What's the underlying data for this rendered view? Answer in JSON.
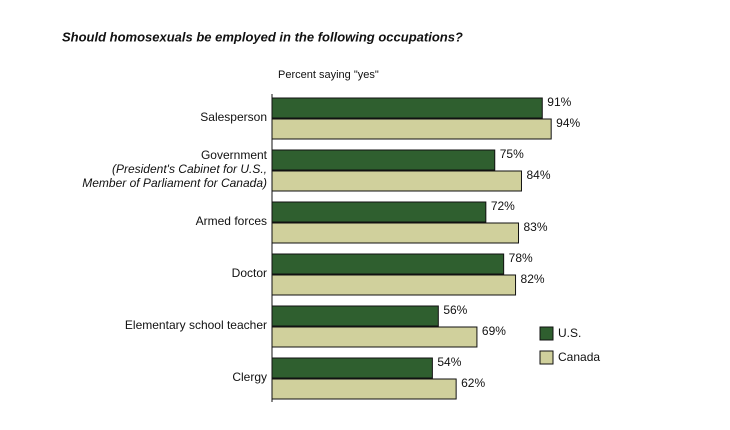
{
  "chart_data": {
    "type": "bar",
    "orientation": "horizontal",
    "title": "Should homosexuals be employed in the following occupations?",
    "subtitle": "Percent saying \"yes\"",
    "categories": [
      "Salesperson",
      "Government",
      "Armed forces",
      "Doctor",
      "Elementary school teacher",
      "Clergy"
    ],
    "category_notes": [
      null,
      [
        "(President's Cabinet for U.S.,",
        "Member of Parliament for Canada)"
      ],
      null,
      null,
      null,
      null
    ],
    "series": [
      {
        "name": "U.S.",
        "color": "#2f5f2f",
        "values": [
          91,
          75,
          72,
          78,
          56,
          54
        ],
        "value_labels": [
          "91%",
          "75%",
          "72%",
          "78%",
          "56%",
          "54%"
        ]
      },
      {
        "name": "Canada",
        "color": "#d0d09c",
        "values": [
          94,
          84,
          83,
          82,
          69,
          62
        ],
        "value_labels": [
          "94%",
          "84%",
          "83%",
          "82%",
          "69%",
          "62%"
        ]
      }
    ]
  }
}
